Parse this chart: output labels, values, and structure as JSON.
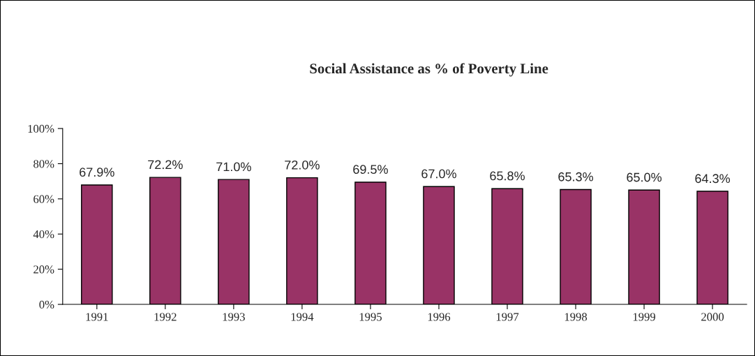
{
  "chart_data": {
    "type": "bar",
    "title": "Social Assistance as % of Poverty Line",
    "categories": [
      "1991",
      "1992",
      "1993",
      "1994",
      "1995",
      "1996",
      "1997",
      "1998",
      "1999",
      "2000"
    ],
    "values": [
      67.9,
      72.2,
      71.0,
      72.0,
      69.5,
      67.0,
      65.8,
      65.3,
      65.0,
      64.3
    ],
    "value_labels": [
      "67.9%",
      "72.2%",
      "71.0%",
      "72.0%",
      "69.5%",
      "67.0%",
      "65.8%",
      "65.3%",
      "65.0%",
      "64.3%"
    ],
    "color": "#993366",
    "ylim": [
      0,
      100
    ],
    "yticks": [
      {
        "value": 0,
        "label": "0%"
      },
      {
        "value": 20,
        "label": "20%"
      },
      {
        "value": 40,
        "label": "40%"
      },
      {
        "value": 60,
        "label": "60%"
      },
      {
        "value": 80,
        "label": "80%"
      },
      {
        "value": 100,
        "label": "100%"
      }
    ],
    "grid": false,
    "legend": false
  }
}
